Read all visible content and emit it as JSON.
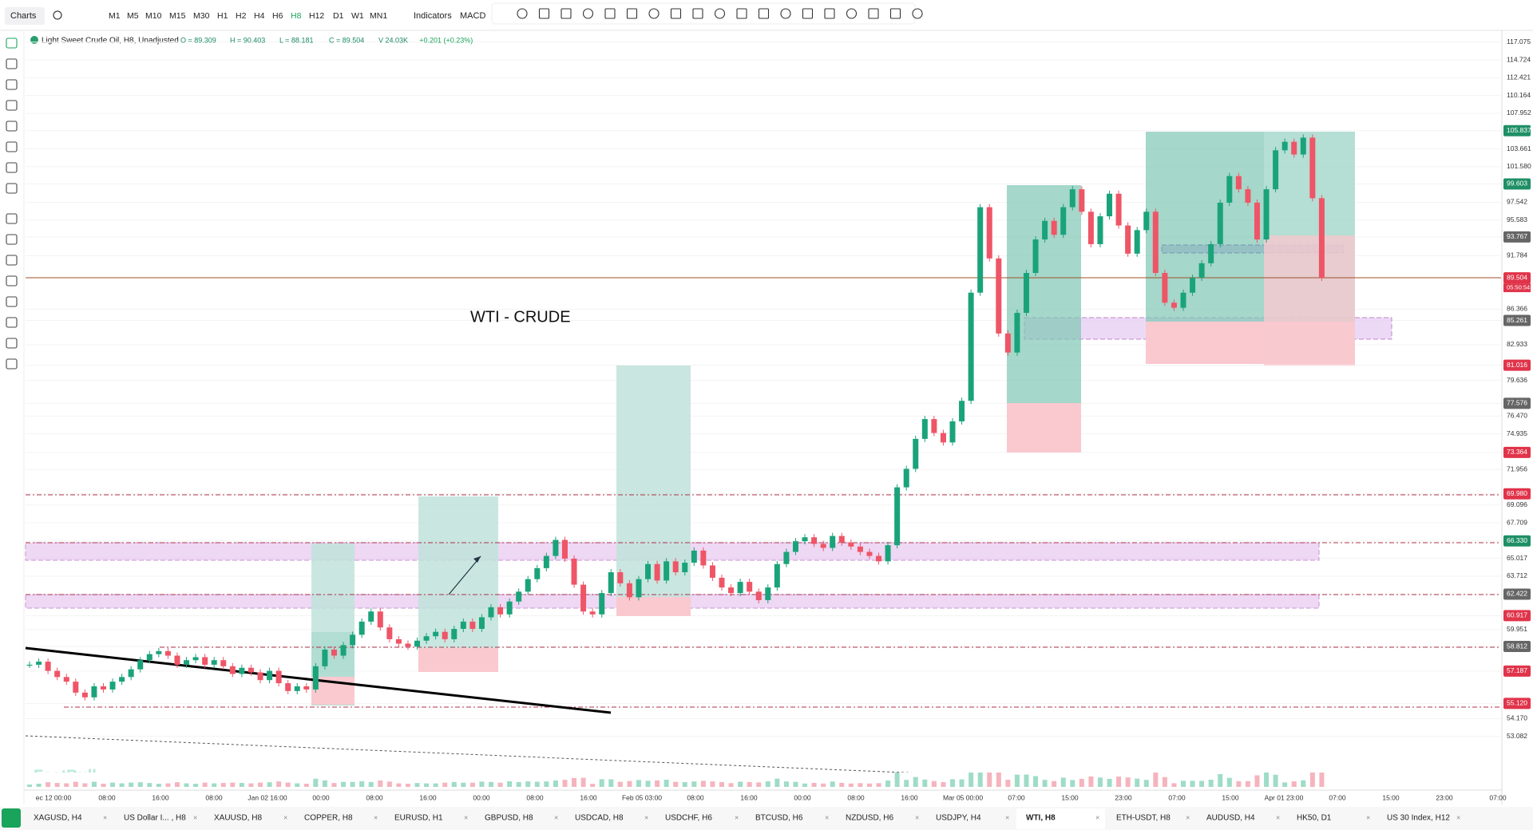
{
  "toolbar": {
    "charts": "Charts",
    "timeframes": [
      "M1",
      "M5",
      "M10",
      "M15",
      "M30",
      "H1",
      "H2",
      "H4",
      "H6",
      "H8",
      "H12",
      "D1",
      "W1",
      "MN1"
    ],
    "active_timeframe": 9,
    "indicators": "Indicators",
    "macd": "MACD"
  },
  "legend": {
    "symbol": "Light Sweet Crude Oil, H8, Unadjusted",
    "items": [
      "O = 89.309",
      "H = 90.403",
      "L = 88.181",
      "C = 89.504",
      "V 24.03K",
      "+0.201 (+0.23%)"
    ]
  },
  "annotation": "WTI - CRUDE",
  "watermark": "FastBull",
  "price_chart": {
    "scale": "log",
    "closes": [
      57.6,
      57.8,
      57.2,
      56.8,
      56.5,
      55.8,
      55.5,
      56.2,
      56.0,
      56.5,
      56.8,
      57.3,
      57.9,
      58.3,
      58.5,
      58.2,
      57.6,
      57.9,
      58.1,
      57.6,
      57.9,
      57.5,
      57.0,
      57.4,
      57.1,
      56.6,
      57.2,
      56.4,
      55.9,
      56.2,
      56.0,
      57.5,
      58.6,
      58.2,
      58.9,
      59.6,
      60.5,
      61.2,
      60.1,
      59.3,
      59.0,
      58.8,
      59.2,
      59.5,
      59.8,
      59.3,
      60.0,
      60.5,
      60.0,
      60.8,
      61.5,
      61.0,
      61.9,
      62.6,
      63.5,
      64.3,
      65.2,
      66.4,
      65.0,
      63.1,
      61.2,
      61.0,
      62.5,
      64.0,
      63.2,
      62.2,
      63.5,
      64.6,
      63.4,
      64.8,
      64.0,
      64.7,
      65.6,
      64.5,
      63.6,
      62.9,
      62.5,
      63.3,
      62.6,
      62.0,
      62.9,
      64.6,
      65.5,
      66.3,
      66.6,
      66.1,
      65.8,
      66.7,
      66.2,
      65.9,
      65.5,
      65.2,
      64.8,
      66.0,
      70.5,
      72.0,
      74.5,
      76.2,
      75.0,
      74.2,
      76.0,
      77.8,
      88.0,
      97.0,
      91.5,
      84.0,
      82.2,
      86.0,
      90.0,
      93.5,
      95.5,
      94.0,
      97.0,
      99.0,
      96.5,
      93.0,
      96.0,
      98.5,
      95.0,
      92.0,
      94.5,
      96.5,
      90.0,
      87.0,
      86.5,
      88.0,
      89.5,
      91.0,
      93.0,
      97.5,
      100.5,
      99.0,
      97.5,
      93.5,
      99.0,
      103.5,
      104.5,
      103.0,
      105.0,
      98.0,
      89.5
    ]
  },
  "price_axis": [
    {
      "text": "117.075"
    },
    {
      "text": "114.724"
    },
    {
      "text": "112.421"
    },
    {
      "text": "110.164"
    },
    {
      "text": "107.952"
    },
    {
      "text": "105.837",
      "style": "green"
    },
    {
      "text": "103.661"
    },
    {
      "text": "101.580"
    },
    {
      "text": "99.603",
      "style": "green"
    },
    {
      "text": "97.542"
    },
    {
      "text": "95.583"
    },
    {
      "text": "93.767",
      "style": "gray"
    },
    {
      "text": "91.784"
    },
    {
      "text": "89.504",
      "style": "red"
    },
    {
      "text": "86.366"
    },
    {
      "text": "85.261",
      "style": "gray"
    },
    {
      "text": "82.933"
    },
    {
      "text": "81.016",
      "style": "red"
    },
    {
      "text": "79.636"
    },
    {
      "text": "77.576",
      "style": "gray"
    },
    {
      "text": "76.470"
    },
    {
      "text": "74.935"
    },
    {
      "text": "73.364",
      "style": "red"
    },
    {
      "text": "71.956"
    },
    {
      "text": "69.980",
      "style": "red"
    },
    {
      "text": "69.096"
    },
    {
      "text": "67.709"
    },
    {
      "text": "66.330",
      "style": "green"
    },
    {
      "text": "65.017"
    },
    {
      "text": "63.712"
    },
    {
      "text": "62.422",
      "style": "gray"
    },
    {
      "text": "60.917",
      "style": "red"
    },
    {
      "text": "59.951"
    },
    {
      "text": "58.812",
      "style": "gray"
    },
    {
      "text": "57.187",
      "style": "red"
    },
    {
      "text": "55.120",
      "style": "red"
    },
    {
      "text": "54.170"
    },
    {
      "text": "53.082"
    }
  ],
  "countdown": "05:50:54",
  "time_axis": [
    "ec 12 00:00",
    "08:00",
    "16:00",
    "08:00",
    "Jan 02 16:00",
    "00:00",
    "08:00",
    "16:00",
    "00:00",
    "08:00",
    "16:00",
    "Feb 05 03:00",
    "08:00",
    "16:00",
    "00:00",
    "08:00",
    "16:00",
    "Mar 05 00:00",
    "07:00",
    "15:00",
    "23:00",
    "07:00",
    "15:00",
    "Apr 01 23:00",
    "07:00",
    "15:00",
    "23:00",
    "07:00"
  ],
  "tabs": [
    "XAGUSD, H4",
    "US Dollar I... , H8",
    "XAUUSD, H8",
    "COPPER, H8",
    "EURUSD, H1",
    "GBPUSD, H8",
    "USDCAD, H8",
    "USDCHF, H6",
    "BTCUSD, H6",
    "NZDUSD, H6",
    "USDJPY, H4",
    "WTI, H8",
    "ETH-USDT, H8",
    "AUDUSD, H4",
    "HK50, D1",
    "US 30 Index, H12"
  ],
  "active_tab": 11
}
